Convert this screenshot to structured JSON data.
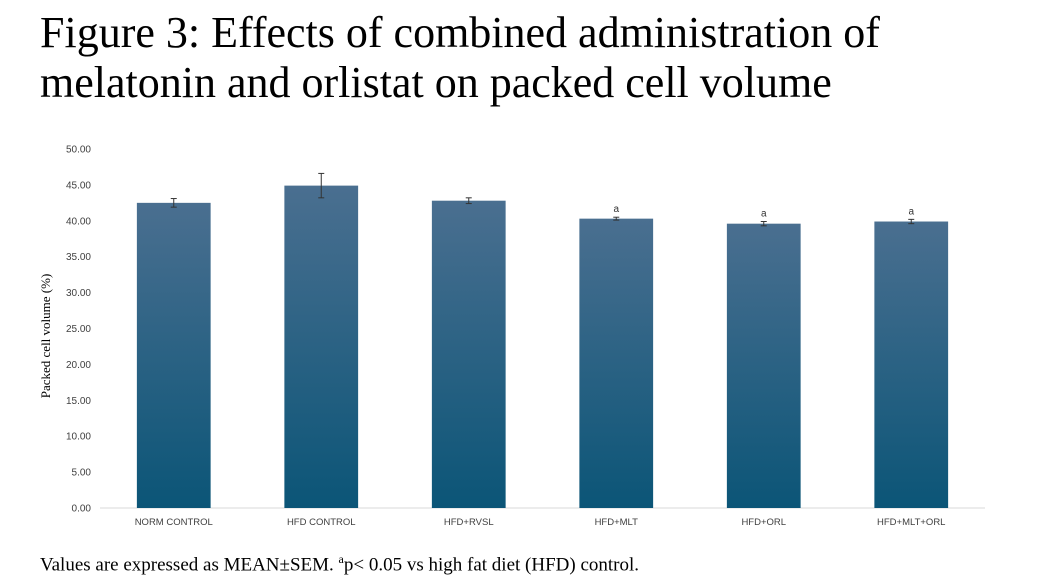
{
  "figure": {
    "title_line1": "Figure 3: Effects of combined administration of",
    "title_line2": "melatonin and orlistat on packed cell volume",
    "footnote_before": "Values are expressed as MEAN±SEM. ",
    "footnote_sup": "a",
    "footnote_after": "p< 0.05 vs high fat diet (HFD) control."
  },
  "chart_data": {
    "type": "bar",
    "ylabel": "Packed cell volume (%)",
    "ylim": [
      0,
      50
    ],
    "yticks": [
      "0.00",
      "5.00",
      "10.00",
      "15.00",
      "20.00",
      "25.00",
      "30.00",
      "35.00",
      "40.00",
      "45.00",
      "50.00"
    ],
    "categories": [
      "NORM CONTROL",
      "HFD CONTROL",
      "HFD+RVSL",
      "HFD+MLT",
      "HFD+ORL",
      "HFD+MLT+ORL"
    ],
    "values": [
      42.5,
      44.9,
      42.8,
      40.3,
      39.6,
      39.9
    ],
    "errors": [
      0.6,
      1.7,
      0.4,
      0.2,
      0.3,
      0.3
    ],
    "annotations": [
      "",
      "",
      "",
      "a",
      "a",
      "a"
    ],
    "grid": false,
    "bar_color_top": "#4a6f90",
    "bar_color_bottom": "#0b5577"
  }
}
